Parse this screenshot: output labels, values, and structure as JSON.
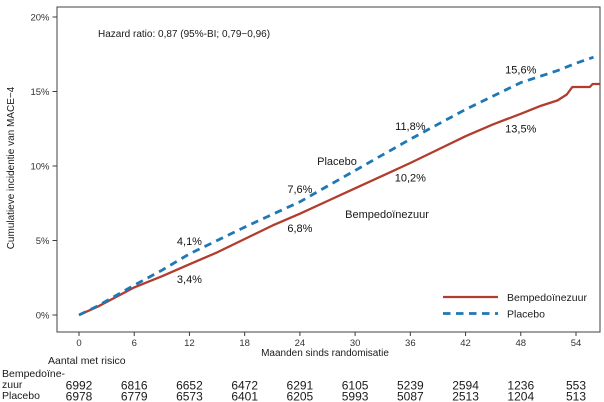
{
  "chart_data": {
    "type": "line",
    "hazard_ratio_annotation": "Hazard ratio: 0,87 (95%-BI; 0,79−0,96)",
    "xlabel": "Maanden sinds randomisatie",
    "ylabel": "Cumulatieve incidentie van MACE−4",
    "xlim": [
      -2.4,
      56.6
    ],
    "ylim": [
      -1.1,
      20.8
    ],
    "x_ticks": [
      0,
      6,
      12,
      18,
      24,
      30,
      36,
      42,
      48,
      54
    ],
    "y_ticks": [
      0,
      5,
      10,
      15,
      20
    ],
    "y_tick_suffix": "%",
    "grid": false,
    "series": [
      {
        "name": "Bempedoïnezuur",
        "color": "#b23c2d",
        "line_style": "solid",
        "points": [
          [
            0,
            0
          ],
          [
            2,
            0.55
          ],
          [
            6,
            1.85
          ],
          [
            9,
            2.6
          ],
          [
            12,
            3.4
          ],
          [
            15,
            4.2
          ],
          [
            18,
            5.1
          ],
          [
            21,
            6.0
          ],
          [
            24,
            6.8
          ],
          [
            27,
            7.65
          ],
          [
            30,
            8.5
          ],
          [
            33,
            9.35
          ],
          [
            36,
            10.2
          ],
          [
            39,
            11.1
          ],
          [
            42,
            12.0
          ],
          [
            45,
            12.8
          ],
          [
            48,
            13.5
          ],
          [
            50,
            14.0
          ],
          [
            52,
            14.4
          ],
          [
            53,
            14.8
          ],
          [
            53.6,
            15.3
          ],
          [
            55.5,
            15.3
          ],
          [
            55.8,
            15.5
          ],
          [
            56.6,
            15.5
          ]
        ]
      },
      {
        "name": "Placebo",
        "color": "#1f78b4",
        "line_style": "dashed",
        "points": [
          [
            0,
            0
          ],
          [
            2,
            0.6
          ],
          [
            6,
            2.0
          ],
          [
            9,
            3.0
          ],
          [
            12,
            4.1
          ],
          [
            15,
            5.0
          ],
          [
            18,
            5.9
          ],
          [
            21,
            6.75
          ],
          [
            24,
            7.6
          ],
          [
            27,
            8.65
          ],
          [
            30,
            9.7
          ],
          [
            33,
            10.75
          ],
          [
            36,
            11.8
          ],
          [
            39,
            12.8
          ],
          [
            42,
            13.8
          ],
          [
            45,
            14.7
          ],
          [
            48,
            15.6
          ],
          [
            50,
            16.0
          ],
          [
            52,
            16.4
          ],
          [
            54,
            16.9
          ],
          [
            55.9,
            17.3
          ]
        ]
      }
    ],
    "point_labels": [
      {
        "text": "3,4%",
        "series": "Bempedoïnezuur",
        "month": 12,
        "pct": 3.4
      },
      {
        "text": "6,8%",
        "series": "Bempedoïnezuur",
        "month": 24,
        "pct": 6.8
      },
      {
        "text": "10,2%",
        "series": "Bempedoïnezuur",
        "month": 36,
        "pct": 10.2
      },
      {
        "text": "13,5%",
        "series": "Bempedoïnezuur",
        "month": 48,
        "pct": 13.5
      },
      {
        "text": "4,1%",
        "series": "Placebo",
        "month": 12,
        "pct": 4.1
      },
      {
        "text": "7,6%",
        "series": "Placebo",
        "month": 24,
        "pct": 7.6
      },
      {
        "text": "11,8%",
        "series": "Placebo",
        "month": 36,
        "pct": 11.8
      },
      {
        "text": "15,6%",
        "series": "Placebo",
        "month": 48,
        "pct": 15.6
      }
    ],
    "series_inline_labels": [
      {
        "text": "Placebo",
        "color": "#1f78b4",
        "x": 337,
        "y": 165
      },
      {
        "text": "Bempedoïnezuur",
        "color": "#b23c2d",
        "x": 387,
        "y": 218
      }
    ],
    "legend": {
      "entries": [
        {
          "label": "Bempedoïnezuur",
          "color": "#b23c2d",
          "line_style": "solid"
        },
        {
          "label": "Placebo",
          "color": "#1f78b4",
          "line_style": "dashed"
        }
      ]
    }
  },
  "risk_table": {
    "title": "Aantal met risico",
    "rows": [
      {
        "label_lines": [
          "Bempedoïne-",
          "zuur"
        ],
        "color": "#b23c2d",
        "values": [
          "6992",
          "6816",
          "6652",
          "6472",
          "6291",
          "6105",
          "5239",
          "2594",
          "1236",
          "553"
        ]
      },
      {
        "label_lines": [
          "Placebo"
        ],
        "color": "#1f78b4",
        "values": [
          "6978",
          "6779",
          "6573",
          "6401",
          "6205",
          "5993",
          "5087",
          "2513",
          "1204",
          "513"
        ]
      }
    ]
  },
  "colors": {
    "bempedoic_red": "#b23c2d",
    "placebo_blue": "#1f78b4",
    "axis": "#3c3c3c"
  }
}
